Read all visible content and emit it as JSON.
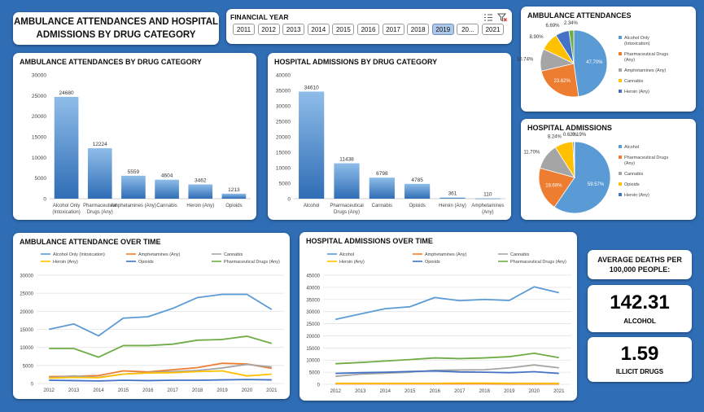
{
  "title": "AMBULANCE ATTENDANCES AND HOSPITAL ADMISSIONS BY DRUG CATEGORY",
  "slicer": {
    "title": "FINANCIAL YEAR",
    "years": [
      "2011",
      "2012",
      "2013",
      "2014",
      "2015",
      "2016",
      "2017",
      "2018",
      "2019",
      "20...",
      "2021"
    ],
    "selected": "2019"
  },
  "kpi": {
    "header": "AVERAGE DEATHS PER 100,000 PEOPLE:",
    "alcohol_value": "142.31",
    "alcohol_label": "ALCOHOL",
    "illicit_value": "1.59",
    "illicit_label": "ILLICIT DRUGS"
  },
  "colors": {
    "background": "#2f6db5",
    "blue": "#5b9bd5",
    "orange": "#ed7d31",
    "gray": "#a5a5a5",
    "yellow": "#ffc000",
    "darkblue": "#4472c4",
    "green": "#70ad47"
  },
  "chart_data": [
    {
      "id": "amb_bar",
      "type": "bar",
      "title": "AMBULANCE ATTENDANCES BY DRUG CATEGORY",
      "categories": [
        [
          "Alcohol Only",
          "(Intoxication)"
        ],
        [
          "Pharmaceutical",
          "Drugs (Any)"
        ],
        [
          "Amphetamines (Any)"
        ],
        [
          "Cannabis"
        ],
        [
          "Heroin (Any)"
        ],
        [
          "Opioids"
        ]
      ],
      "values": [
        24680,
        12224,
        5559,
        4604,
        3462,
        1213
      ],
      "ylim": [
        0,
        30000
      ],
      "yticks": [
        0,
        5000,
        10000,
        15000,
        20000,
        25000,
        30000
      ],
      "grid": false
    },
    {
      "id": "hosp_bar",
      "type": "bar",
      "title": "HOSPITAL ADMISSIONS BY DRUG CATEGORY",
      "categories": [
        [
          "Alcohol"
        ],
        [
          "Pharmaceutical",
          "Drugs (Any)"
        ],
        [
          "Cannabis"
        ],
        [
          "Opioids"
        ],
        [
          "Heroin (Any)"
        ],
        [
          "Amphetamines",
          "(Any)"
        ]
      ],
      "values": [
        34610,
        11438,
        6798,
        4785,
        361,
        110
      ],
      "ylim": [
        0,
        40000
      ],
      "yticks": [
        0,
        5000,
        10000,
        15000,
        20000,
        25000,
        30000,
        35000,
        40000
      ],
      "grid": false
    },
    {
      "id": "amb_pie",
      "type": "pie",
      "title": "AMBULANCE ATTENDANCES",
      "slices": [
        {
          "label": "Alcohol Only (Intoxication)",
          "value": 47.7,
          "display": "47.70%",
          "color": "#5b9bd5"
        },
        {
          "label": "Pharmaceutical Drugs (Any)",
          "value": 23.62,
          "display": "23.62%",
          "color": "#ed7d31"
        },
        {
          "label": "Amphetamines (Any)",
          "value": 10.74,
          "display": "10.74%",
          "color": "#a5a5a5"
        },
        {
          "label": "Cannabis",
          "value": 8.9,
          "display": "8.90%",
          "color": "#ffc000"
        },
        {
          "label": "Heroin (Any)",
          "value": 6.69,
          "display": "6.69%",
          "color": "#4472c4"
        },
        {
          "label": "",
          "value": 2.34,
          "display": "2.34%",
          "color": "#70ad47"
        }
      ],
      "legend": "right"
    },
    {
      "id": "hosp_pie",
      "type": "pie",
      "title": "HOSPITAL ADMISSIONS",
      "slices": [
        {
          "label": "Alcohol",
          "value": 59.57,
          "display": "59.57%",
          "color": "#5b9bd5"
        },
        {
          "label": "Pharmaceutical Drugs (Any)",
          "value": 19.69,
          "display": "19.69%",
          "color": "#ed7d31"
        },
        {
          "label": "Cannabis",
          "value": 11.7,
          "display": "11.70%",
          "color": "#a5a5a5"
        },
        {
          "label": "Opioids",
          "value": 8.24,
          "display": "8.24%",
          "color": "#ffc000"
        },
        {
          "label": "Heroin (Any)",
          "value": 0.62,
          "display": "0.62%",
          "color": "#4472c4"
        },
        {
          "label": "",
          "value": 0.19,
          "display": "0.19%",
          "color": "#70ad47"
        }
      ],
      "legend": "right"
    },
    {
      "id": "amb_line",
      "type": "line",
      "title": "AMBULANCE ATTENDANCE OVER TIME",
      "x": [
        "2012",
        "2013",
        "2014",
        "2015",
        "2016",
        "2017",
        "2018",
        "2019",
        "2020",
        "2021"
      ],
      "ylim": [
        0,
        30000
      ],
      "yticks": [
        0,
        5000,
        10000,
        15000,
        20000,
        25000,
        30000
      ],
      "grid": true,
      "legend": "top",
      "series": [
        {
          "name": "Alcohol Only (Intoxication)",
          "color": "#5b9bd5",
          "values": [
            15000,
            16500,
            13200,
            18100,
            18500,
            20800,
            23800,
            24700,
            24700,
            20500
          ]
        },
        {
          "name": "Amphetamines (Any)",
          "color": "#ed7d31",
          "values": [
            1900,
            2000,
            2200,
            3500,
            3200,
            3800,
            4400,
            5600,
            5400,
            4200
          ]
        },
        {
          "name": "Cannabis",
          "color": "#a5a5a5",
          "values": [
            1600,
            2100,
            1700,
            2600,
            3000,
            3300,
            3600,
            4300,
            5300,
            4600
          ]
        },
        {
          "name": "Heroin (Any)",
          "color": "#ffc000",
          "values": [
            1500,
            1700,
            1600,
            2600,
            2900,
            3000,
            3300,
            3500,
            2100,
            2600
          ]
        },
        {
          "name": "Opioids",
          "color": "#4472c4",
          "values": [
            900,
            800,
            700,
            900,
            800,
            900,
            900,
            1000,
            1100,
            1000
          ]
        },
        {
          "name": "Pharmaceutical Drugs (Any)",
          "color": "#70ad47",
          "values": [
            9700,
            9700,
            7300,
            10500,
            10500,
            10900,
            12000,
            12200,
            13100,
            11100
          ]
        }
      ]
    },
    {
      "id": "hosp_line",
      "type": "line",
      "title": "HOSPITAL ADMISSIONS OVER TIME",
      "x": [
        "2012",
        "2013",
        "2014",
        "2015",
        "2016",
        "2017",
        "2018",
        "2019",
        "2020",
        "2021"
      ],
      "ylim": [
        0,
        45000
      ],
      "yticks": [
        0,
        5000,
        10000,
        15000,
        20000,
        25000,
        30000,
        35000,
        40000,
        45000
      ],
      "grid": true,
      "legend": "top",
      "series": [
        {
          "name": "Alcohol",
          "color": "#5b9bd5",
          "values": [
            26800,
            29000,
            31200,
            32000,
            35800,
            34500,
            35000,
            34600,
            40200,
            37800
          ]
        },
        {
          "name": "Amphetamines (Any)",
          "color": "#ed7d31",
          "values": [
            200,
            200,
            200,
            200,
            200,
            200,
            200,
            150,
            150,
            120
          ]
        },
        {
          "name": "Cannabis",
          "color": "#a5a5a5",
          "values": [
            3300,
            4200,
            4600,
            5000,
            5800,
            5900,
            6000,
            6800,
            8000,
            6800
          ]
        },
        {
          "name": "Heroin (Any)",
          "color": "#ffc000",
          "values": [
            400,
            400,
            400,
            400,
            400,
            500,
            500,
            400,
            400,
            400
          ]
        },
        {
          "name": "Opioids",
          "color": "#4472c4",
          "values": [
            4500,
            4800,
            5000,
            5300,
            5500,
            5100,
            5000,
            4800,
            5200,
            4500
          ]
        },
        {
          "name": "Pharmaceutical Drugs (Any)",
          "color": "#70ad47",
          "values": [
            8500,
            9000,
            9600,
            10200,
            10900,
            10600,
            10900,
            11400,
            12800,
            11000
          ]
        }
      ]
    }
  ]
}
